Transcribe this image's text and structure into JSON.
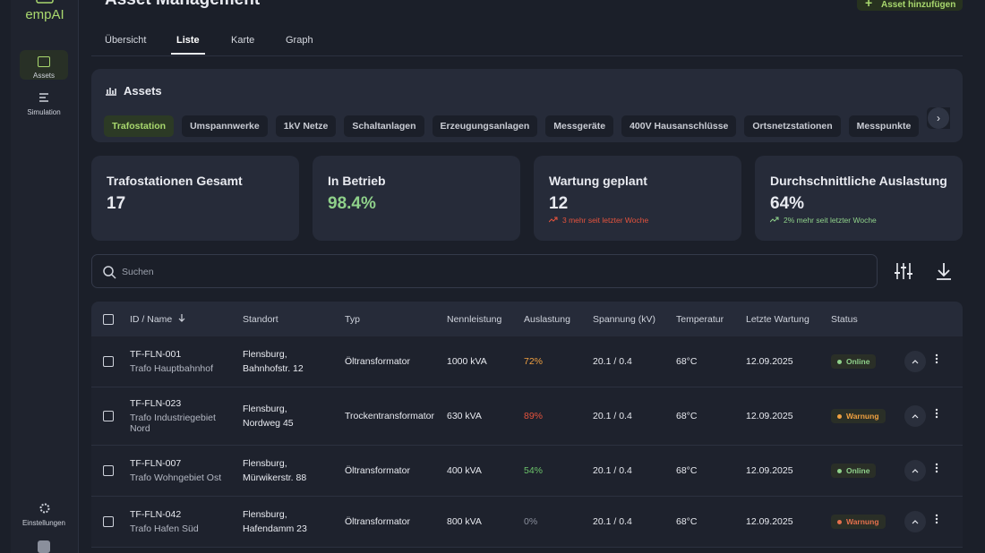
{
  "sidebar": {
    "logo": "empAI",
    "nav": [
      "Assets",
      "Simulation"
    ],
    "settings": "Einstellungen"
  },
  "header": {
    "title": "Asset Management",
    "button": "Asset hinzufügen"
  },
  "tabs": [
    "Übersicht",
    "Liste",
    "Karte",
    "Graph"
  ],
  "assets": {
    "title": "Assets",
    "filters": [
      "Trafostation",
      "Umspannwerke",
      "1kV Netze",
      "Schaltanlagen",
      "Erzeugungsanlagen",
      "Messgeräte",
      "400V Hausanschlüsse",
      "Ortsnetzstationen",
      "Messpunkte"
    ]
  },
  "kpis": [
    {
      "label": "Trafostationen Gesamt",
      "value": "17"
    },
    {
      "label": "In Betrieb",
      "value": "98.4%",
      "color": "#8fd18a"
    },
    {
      "label": "Wartung geplant",
      "value": "12",
      "note": "3 mehr seit letzter Woche",
      "note_color": "#e5533d"
    },
    {
      "label": "Durchschnittliche Auslastung",
      "value": "64%",
      "note": "2% mehr seit letzter Woche",
      "note_color": "#8fd18a"
    }
  ],
  "search": {
    "placeholder": "Suchen"
  },
  "table": {
    "columns": [
      "ID / Name",
      "Standort",
      "Typ",
      "Nennleistung",
      "Auslastung",
      "Spannung (kV)",
      "Temperatur",
      "Letzte Wartung",
      "Status"
    ],
    "rows": [
      {
        "id": "TF-FLN-001",
        "name": "Trafo Hauptbahnhof",
        "location": "Flensburg, Bahnhofstr. 12",
        "type": "Öltransformator",
        "rating": "1000 kVA",
        "load": "72%",
        "load_color": "#f0a040",
        "voltage": "20.1 / 0.4",
        "temperature": "68°C",
        "maintenance": "12.09.2025",
        "status": "Online",
        "status_color": "#8fd18a"
      },
      {
        "id": "TF-FLN-023",
        "name": "Trafo Industriegebiet Nord",
        "location": "Flensburg, Nordweg 45",
        "type": "Trockentransformator",
        "rating": "630 kVA",
        "load": "89%",
        "load_color": "#e5533d",
        "voltage": "20.1 / 0.4",
        "temperature": "68°C",
        "maintenance": "12.09.2025",
        "status": "Warnung",
        "status_color": "#f0a040"
      },
      {
        "id": "TF-FLN-007",
        "name": "Trafo Wohngebiet Ost",
        "location": "Flensburg, Mürwikerstr. 88",
        "type": "Öltransformator",
        "rating": "400 kVA",
        "load": "54%",
        "load_color": "#6cc46a",
        "voltage": "20.1 / 0.4",
        "temperature": "68°C",
        "maintenance": "12.09.2025",
        "status": "Online",
        "status_color": "#8fd18a"
      },
      {
        "id": "TF-FLN-042",
        "name": "Trafo Hafen Süd",
        "location": "Flensburg, Hafendamm 23",
        "type": "Öltransformator",
        "rating": "800 kVA",
        "load": "0%",
        "load_color": "#8a8f9c",
        "voltage": "20.1 / 0.4",
        "temperature": "68°C",
        "maintenance": "12.09.2025",
        "status": "Warnung",
        "status_color": "#e5704d"
      }
    ]
  }
}
